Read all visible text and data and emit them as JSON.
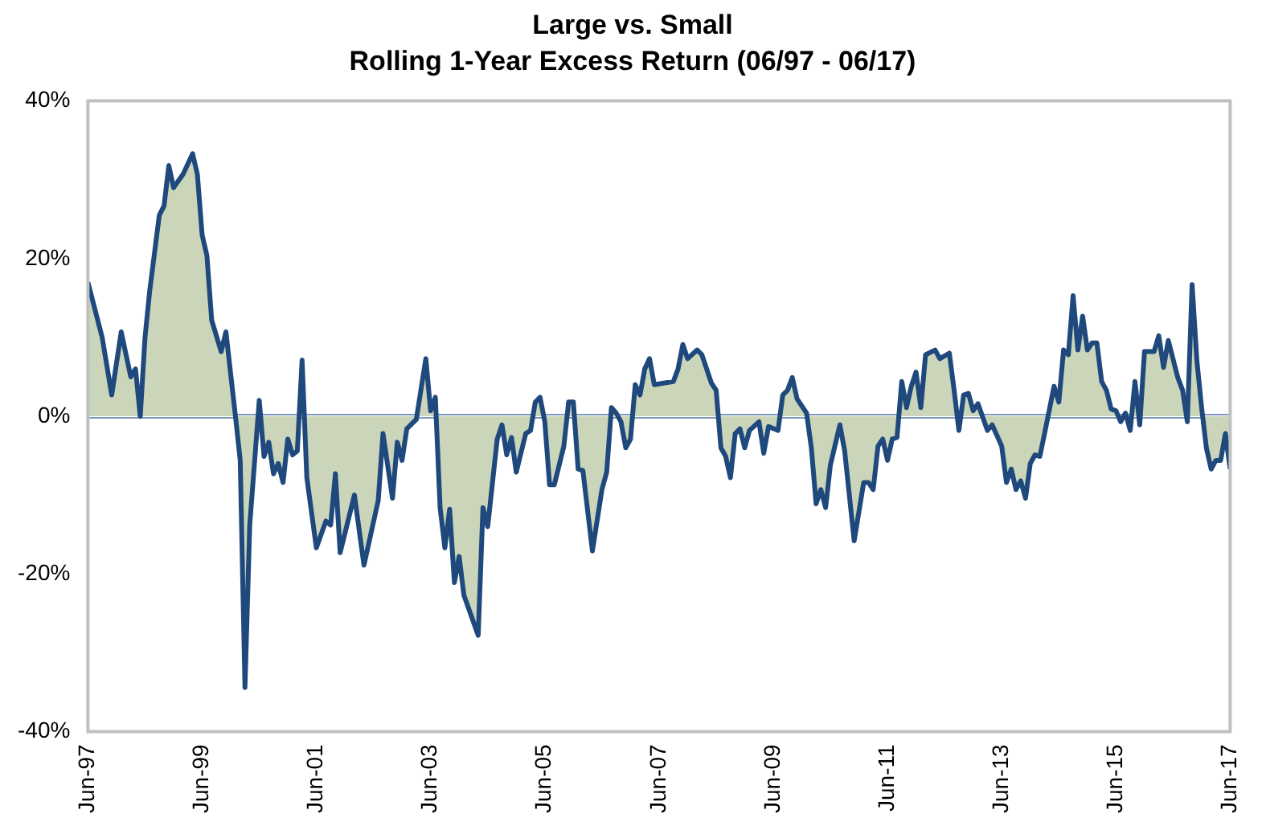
{
  "chart_data": {
    "type": "area",
    "title": "Large vs. Small",
    "subtitle": "Rolling 1-Year Excess Return (06/97 - 06/17)",
    "xlim": [
      "1997-06",
      "2017-06"
    ],
    "xticks": [
      {
        "value": "1997-06",
        "label": "Jun-97"
      },
      {
        "value": "1999-06",
        "label": "Jun-99"
      },
      {
        "value": "2001-06",
        "label": "Jun-01"
      },
      {
        "value": "2003-06",
        "label": "Jun-03"
      },
      {
        "value": "2005-06",
        "label": "Jun-05"
      },
      {
        "value": "2007-06",
        "label": "Jun-07"
      },
      {
        "value": "2009-06",
        "label": "Jun-09"
      },
      {
        "value": "2011-06",
        "label": "Jun-11"
      },
      {
        "value": "2013-06",
        "label": "Jun-13"
      },
      {
        "value": "2015-06",
        "label": "Jun-15"
      },
      {
        "value": "2017-06",
        "label": "Jun-17"
      }
    ],
    "ylim": [
      -40,
      40
    ],
    "yticks": [
      {
        "value": -40,
        "label": "-40%"
      },
      {
        "value": -20,
        "label": "-20%"
      },
      {
        "value": 0,
        "label": "0%"
      },
      {
        "value": 20,
        "label": "20%"
      },
      {
        "value": 40,
        "label": "40%"
      }
    ],
    "grid": false,
    "ref_lines": [
      {
        "axis": "y",
        "value": 0,
        "color": "#7f97bd"
      }
    ],
    "series": [
      {
        "color": "#1f497d",
        "x": [
          "1997-06",
          "1997-09",
          "1997-11",
          "1998-01",
          "1998-03",
          "1998-04",
          "1998-05",
          "1998-06",
          "1998-07",
          "1998-09",
          "1998-10",
          "1998-11",
          "1998-12",
          "1999-02",
          "1999-04",
          "1999-05",
          "1999-06",
          "1999-07",
          "1999-08",
          "1999-10",
          "1999-11",
          "2000-01",
          "2000-02",
          "2000-03",
          "2000-04",
          "2000-06",
          "2000-07",
          "2000-08",
          "2000-09",
          "2000-10",
          "2000-11",
          "2000-12",
          "2001-01",
          "2001-02",
          "2001-03",
          "2001-04",
          "2001-06",
          "2001-08",
          "2001-09",
          "2001-10",
          "2001-11",
          "2002-02",
          "2002-04",
          "2002-07",
          "2002-08",
          "2002-10",
          "2002-11",
          "2002-12",
          "2003-01",
          "2003-03",
          "2003-05",
          "2003-06",
          "2003-07",
          "2003-08",
          "2003-09",
          "2003-10",
          "2003-11",
          "2003-12",
          "2004-01",
          "2004-04",
          "2004-05",
          "2004-06",
          "2004-08",
          "2004-09",
          "2004-10",
          "2004-11",
          "2004-12",
          "2005-02",
          "2005-03",
          "2005-04",
          "2005-05",
          "2005-06",
          "2005-07",
          "2005-08",
          "2005-10",
          "2005-11",
          "2005-12",
          "2006-01",
          "2006-02",
          "2006-04",
          "2006-06",
          "2006-07",
          "2006-08",
          "2006-09",
          "2006-10",
          "2006-11",
          "2006-12",
          "2007-01",
          "2007-02",
          "2007-03",
          "2007-04",
          "2007-05",
          "2007-07",
          "2007-09",
          "2007-10",
          "2007-11",
          "2007-12",
          "2008-02",
          "2008-03",
          "2008-05",
          "2008-06",
          "2008-07",
          "2008-08",
          "2008-09",
          "2008-10",
          "2008-11",
          "2008-12",
          "2009-01",
          "2009-03",
          "2009-04",
          "2009-05",
          "2009-07",
          "2009-08",
          "2009-09",
          "2009-10",
          "2009-11",
          "2010-01",
          "2010-02",
          "2010-03",
          "2010-04",
          "2010-05",
          "2010-06",
          "2010-08",
          "2010-09",
          "2010-11",
          "2011-01",
          "2011-02",
          "2011-03",
          "2011-04",
          "2011-05",
          "2011-06",
          "2011-07",
          "2011-08",
          "2011-09",
          "2011-10",
          "2011-11",
          "2011-12",
          "2012-01",
          "2012-02",
          "2012-04",
          "2012-05",
          "2012-07",
          "2012-08",
          "2012-09",
          "2012-10",
          "2012-11",
          "2012-12",
          "2013-01",
          "2013-03",
          "2013-04",
          "2013-06",
          "2013-07",
          "2013-08",
          "2013-09",
          "2013-10",
          "2013-11",
          "2013-12",
          "2014-01",
          "2014-02",
          "2014-03",
          "2014-05",
          "2014-06",
          "2014-07",
          "2014-08",
          "2014-09",
          "2014-10",
          "2014-11",
          "2014-12",
          "2015-01",
          "2015-02",
          "2015-03",
          "2015-04",
          "2015-05",
          "2015-06",
          "2015-07",
          "2015-08",
          "2015-09",
          "2015-10",
          "2015-11",
          "2015-12",
          "2016-02",
          "2016-03",
          "2016-04",
          "2016-05",
          "2016-07",
          "2016-08",
          "2016-09",
          "2016-10",
          "2016-11",
          "2016-12",
          "2017-01",
          "2017-02",
          "2017-03",
          "2017-04",
          "2017-05",
          "2017-06"
        ],
        "values": [
          17,
          10,
          2.7,
          10.7,
          5,
          6,
          0,
          10,
          16,
          25.5,
          26.7,
          31.8,
          29,
          30.7,
          33.3,
          30.7,
          23,
          20.4,
          12.2,
          8.2,
          10.7,
          0,
          -5.6,
          -34.4,
          -13.8,
          2,
          -5.1,
          -3.3,
          -7.3,
          -6,
          -8.4,
          -2.9,
          -4.9,
          -4.4,
          7.1,
          -7.8,
          -16.7,
          -13.3,
          -13.8,
          -7.3,
          -17.3,
          -10,
          -18.9,
          -10.7,
          -2.2,
          -10.4,
          -3.3,
          -5.6,
          -1.6,
          -0.4,
          7.3,
          0.7,
          2.4,
          -11.6,
          -16.7,
          -11.8,
          -21.1,
          -17.8,
          -22.7,
          -27.8,
          -11.6,
          -14,
          -2.9,
          -1.1,
          -4.9,
          -2.7,
          -7.1,
          -2.2,
          -1.8,
          1.8,
          2.4,
          -0.7,
          -8.7,
          -8.7,
          -3.8,
          1.8,
          1.8,
          -6.7,
          -6.9,
          -17.1,
          -9.3,
          -7.1,
          1.1,
          0.4,
          -0.7,
          -4,
          -2.9,
          4,
          2.7,
          6,
          7.3,
          4,
          4.2,
          4.4,
          6,
          9.1,
          7.3,
          8.4,
          7.8,
          4.2,
          3.3,
          -4,
          -5.1,
          -7.8,
          -2.2,
          -1.6,
          -4,
          -1.8,
          -0.7,
          -4.7,
          -1.3,
          -1.8,
          2.7,
          3.3,
          4.9,
          2.2,
          0.4,
          -4,
          -11.1,
          -9.3,
          -11.6,
          -6.2,
          -1.1,
          -4.4,
          -15.8,
          -8.4,
          -8.4,
          -9.3,
          -3.8,
          -2.9,
          -5.6,
          -2.9,
          -2.7,
          4.4,
          1.1,
          3.8,
          5.6,
          1.1,
          7.8,
          8.4,
          7.3,
          8,
          3.3,
          -1.8,
          2.7,
          2.9,
          0.7,
          1.6,
          -1.8,
          -1.1,
          -3.8,
          -8.4,
          -6.7,
          -9.3,
          -8.2,
          -10.4,
          -6,
          -4.9,
          -5.1,
          -2.2,
          3.8,
          1.8,
          8.4,
          7.8,
          15.3,
          8.4,
          12.7,
          8.4,
          9.3,
          9.3,
          4.4,
          3.3,
          0.9,
          0.7,
          -0.7,
          0.4,
          -1.8,
          4.4,
          -1.1,
          8.2,
          8.2,
          10.2,
          6.2,
          9.6,
          4.9,
          3.3,
          -0.7,
          16.7,
          7.1,
          1.1,
          -4,
          -6.7,
          -5.6,
          -5.6,
          -2.2,
          -6.7
        ]
      }
    ]
  }
}
